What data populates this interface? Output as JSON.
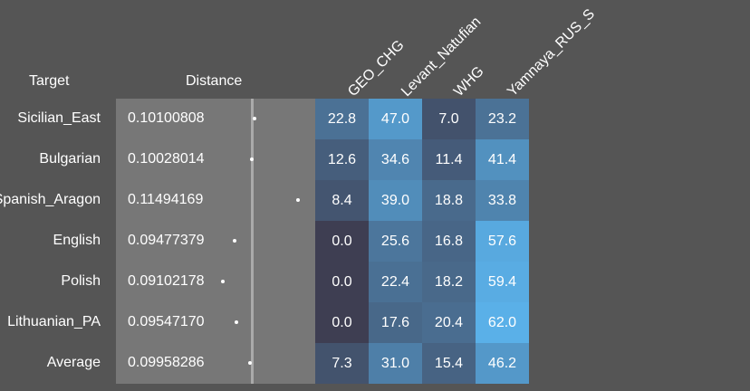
{
  "headers": {
    "target": "Target",
    "distance": "Distance",
    "columns": [
      "GEO_CHG",
      "Levant_Natufian",
      "WHG",
      "Yamnaya_RUS_S"
    ]
  },
  "rows": [
    {
      "target": "Sicilian_East",
      "distance": "0.10100808",
      "values": [
        "22.8",
        "47.0",
        "7.0",
        "23.2"
      ]
    },
    {
      "target": "Bulgarian",
      "distance": "0.10028014",
      "values": [
        "12.6",
        "34.6",
        "11.4",
        "41.4"
      ]
    },
    {
      "target": "Spanish_Aragon",
      "distance": "0.11494169",
      "values": [
        "8.4",
        "39.0",
        "18.8",
        "33.8"
      ]
    },
    {
      "target": "English",
      "distance": "0.09477379",
      "values": [
        "0.0",
        "25.6",
        "16.8",
        "57.6"
      ]
    },
    {
      "target": "Polish",
      "distance": "0.09102178",
      "values": [
        "0.0",
        "22.4",
        "18.2",
        "59.4"
      ]
    },
    {
      "target": "Lithuanian_PA",
      "distance": "0.09547170",
      "values": [
        "0.0",
        "17.6",
        "20.4",
        "62.0"
      ]
    },
    {
      "target": "Average",
      "distance": "0.09958286",
      "values": [
        "7.3",
        "31.0",
        "15.4",
        "46.2"
      ]
    }
  ],
  "colors": {
    "background": "#555555",
    "distance_panel": "#777777",
    "distance_line": "#aaaaaa",
    "heat_low": "#3e3e52",
    "heat_high": "#5ab0e8"
  }
}
